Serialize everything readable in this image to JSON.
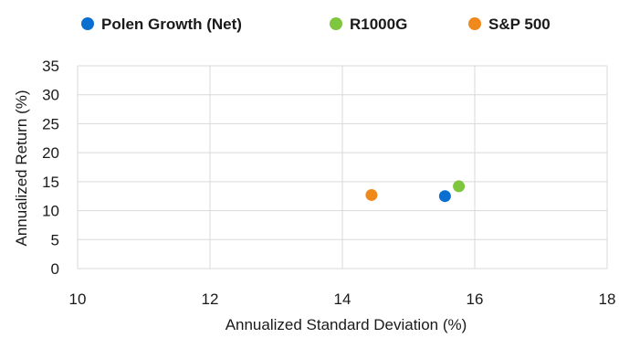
{
  "chart_data": {
    "type": "scatter",
    "title": "",
    "xlabel": "Annualized Standard Deviation (%)",
    "ylabel": "Annualized Return (%)",
    "xlim": [
      10,
      18
    ],
    "ylim": [
      0,
      35
    ],
    "xticks": [
      10,
      12,
      14,
      16,
      18
    ],
    "yticks": [
      0,
      5,
      10,
      15,
      20,
      25,
      30,
      35
    ],
    "grid": true,
    "legend_position": "top",
    "series": [
      {
        "name": "Polen Growth (Net)",
        "color": "#0a6fd1",
        "points": [
          {
            "x": 15.55,
            "y": 12.5
          }
        ]
      },
      {
        "name": "R1000G",
        "color": "#7dc63d",
        "points": [
          {
            "x": 15.76,
            "y": 14.2
          }
        ]
      },
      {
        "name": "S&P 500",
        "color": "#f0891c",
        "points": [
          {
            "x": 14.44,
            "y": 12.7
          }
        ]
      }
    ]
  }
}
